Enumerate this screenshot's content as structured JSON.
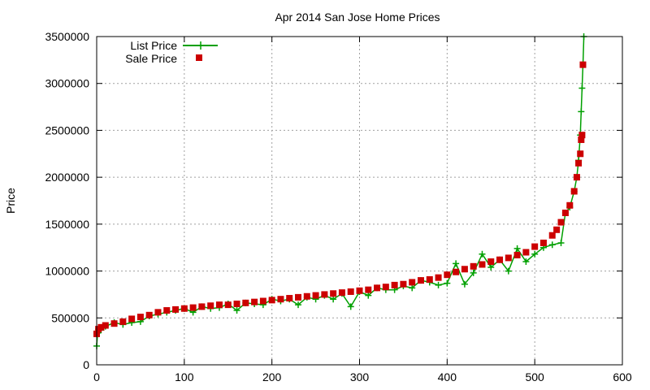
{
  "chart_data": {
    "type": "scatter",
    "title": "Apr 2014 San Jose Home Prices",
    "xlabel": "",
    "ylabel": "Price",
    "xlim": [
      0,
      600
    ],
    "ylim": [
      0,
      3500000
    ],
    "xticks": [
      0,
      100,
      200,
      300,
      400,
      500,
      600
    ],
    "yticks": [
      0,
      500000,
      1000000,
      1500000,
      2000000,
      2500000,
      3000000,
      3500000
    ],
    "xtick_labels": [
      "0",
      "100",
      "200",
      "300",
      "400",
      "500",
      "600"
    ],
    "ytick_labels": [
      "0",
      "500000",
      "1000000",
      "1500000",
      "2000000",
      "2500000",
      "3000000",
      "3500000"
    ],
    "grid": true,
    "legend_position": "top-left",
    "series": [
      {
        "name": "List Price",
        "style": "line-with-plus-markers",
        "color": "#00a000",
        "x": [
          0,
          1,
          2,
          5,
          10,
          20,
          30,
          40,
          50,
          60,
          70,
          80,
          90,
          100,
          110,
          120,
          130,
          140,
          150,
          160,
          170,
          180,
          190,
          200,
          210,
          220,
          230,
          240,
          250,
          260,
          270,
          280,
          290,
          300,
          310,
          320,
          330,
          340,
          350,
          360,
          370,
          380,
          390,
          400,
          410,
          420,
          430,
          440,
          450,
          460,
          470,
          480,
          490,
          500,
          510,
          520,
          530,
          535,
          540,
          545,
          548,
          550,
          552,
          553,
          554,
          555,
          556
        ],
        "y": [
          200000,
          340000,
          380000,
          370000,
          410000,
          450000,
          430000,
          450000,
          460000,
          520000,
          540000,
          560000,
          580000,
          600000,
          560000,
          620000,
          600000,
          610000,
          650000,
          580000,
          660000,
          650000,
          640000,
          700000,
          680000,
          700000,
          640000,
          720000,
          700000,
          740000,
          700000,
          760000,
          620000,
          780000,
          740000,
          820000,
          800000,
          800000,
          840000,
          820000,
          900000,
          880000,
          850000,
          870000,
          1080000,
          860000,
          980000,
          1180000,
          1040000,
          1120000,
          1000000,
          1240000,
          1100000,
          1180000,
          1250000,
          1280000,
          1300000,
          1620000,
          1680000,
          1850000,
          2000000,
          2180000,
          2450000,
          2700000,
          2950000,
          3200000,
          3500000
        ]
      },
      {
        "name": "Sale Price",
        "style": "square-markers",
        "color": "#cc0000",
        "x": [
          0,
          2,
          5,
          10,
          20,
          30,
          40,
          50,
          60,
          70,
          80,
          90,
          100,
          110,
          120,
          130,
          140,
          150,
          160,
          170,
          180,
          190,
          200,
          210,
          220,
          230,
          240,
          250,
          260,
          270,
          280,
          290,
          300,
          310,
          320,
          330,
          340,
          350,
          360,
          370,
          380,
          390,
          400,
          410,
          420,
          430,
          440,
          450,
          460,
          470,
          480,
          490,
          500,
          510,
          520,
          525,
          530,
          535,
          540,
          545,
          548,
          550,
          552,
          553,
          554,
          555
        ],
        "y": [
          330000,
          380000,
          400000,
          420000,
          440000,
          460000,
          490000,
          510000,
          530000,
          560000,
          580000,
          590000,
          600000,
          610000,
          620000,
          630000,
          640000,
          640000,
          650000,
          660000,
          670000,
          680000,
          690000,
          700000,
          710000,
          720000,
          730000,
          740000,
          750000,
          760000,
          770000,
          780000,
          790000,
          800000,
          820000,
          830000,
          850000,
          860000,
          880000,
          900000,
          910000,
          930000,
          960000,
          990000,
          1020000,
          1050000,
          1070000,
          1100000,
          1120000,
          1140000,
          1170000,
          1200000,
          1260000,
          1300000,
          1380000,
          1440000,
          1520000,
          1620000,
          1700000,
          1850000,
          2000000,
          2150000,
          2250000,
          2400000,
          2450000,
          3200000
        ]
      }
    ]
  }
}
